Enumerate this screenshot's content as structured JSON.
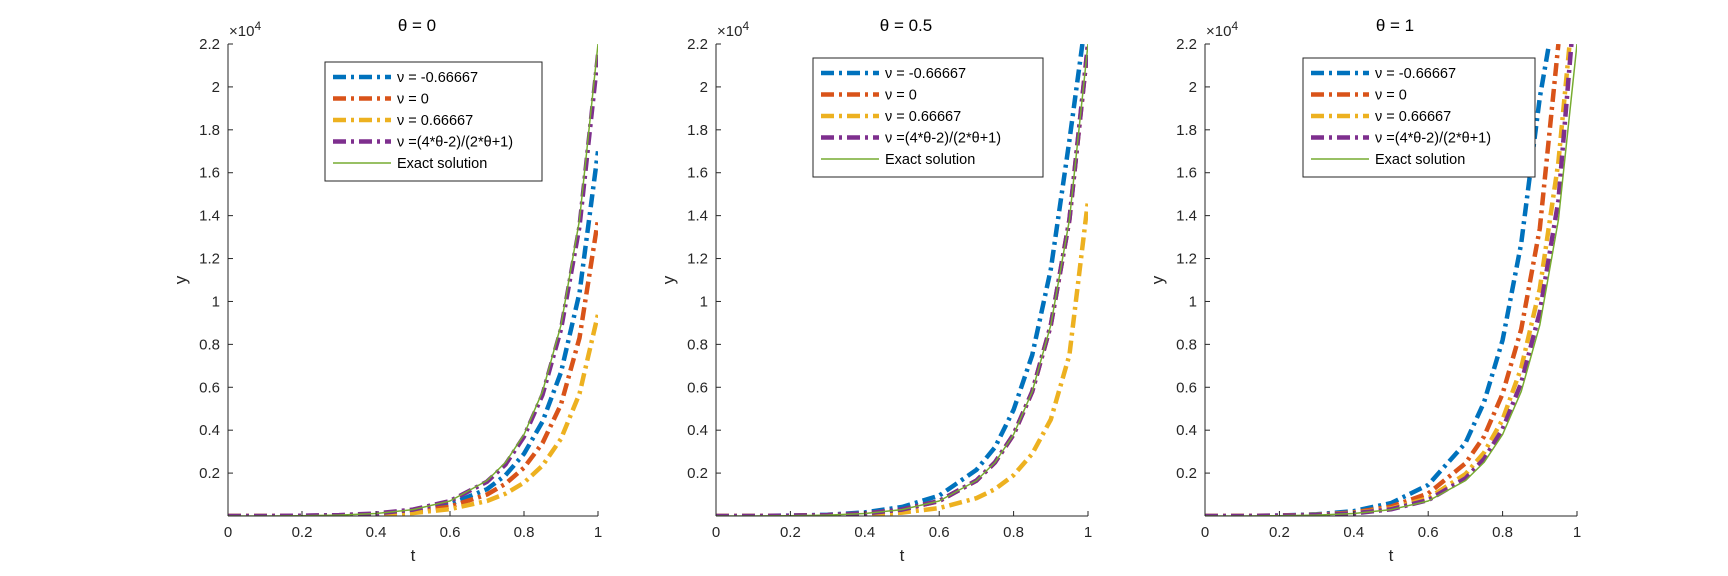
{
  "chart_data": [
    {
      "type": "line",
      "title": "θ = 0",
      "title_prefix": "θ",
      "title_value": "0",
      "xlabel": "t",
      "ylabel": "y",
      "exponent_label": "×10",
      "exponent_power": "4",
      "xlim": [
        0,
        1
      ],
      "ylim": [
        0,
        22000
      ],
      "xticks": [
        "0",
        "0.2",
        "0.4",
        "0.6",
        "0.8",
        "1"
      ],
      "yticks": [
        "0.2",
        "0.4",
        "0.6",
        "0.8",
        "1",
        "1.2",
        "1.4",
        "1.6",
        "1.8",
        "2",
        "2.2"
      ],
      "grid": false,
      "legend_position": "top",
      "series": [
        {
          "name": "ν = -0.66667",
          "style": "dash-dot",
          "x": [
            0,
            0.1,
            0.2,
            0.3,
            0.4,
            0.5,
            0.6,
            0.7,
            0.75,
            0.8,
            0.85,
            0.9,
            0.95,
            1
          ],
          "y": [
            0,
            2,
            10,
            30,
            90,
            230,
            550,
            1250,
            1900,
            2900,
            4400,
            6700,
            10400,
            17000
          ]
        },
        {
          "name": "ν = 0",
          "style": "dash-dot",
          "x": [
            0,
            0.1,
            0.2,
            0.3,
            0.4,
            0.5,
            0.6,
            0.7,
            0.75,
            0.8,
            0.85,
            0.9,
            0.95,
            1
          ],
          "y": [
            0,
            2,
            8,
            25,
            75,
            190,
            440,
            1000,
            1500,
            2250,
            3400,
            5200,
            8300,
            13800
          ]
        },
        {
          "name": "ν = 0.66667",
          "style": "dash-dot",
          "x": [
            0,
            0.1,
            0.2,
            0.3,
            0.4,
            0.5,
            0.6,
            0.7,
            0.75,
            0.8,
            0.85,
            0.9,
            0.95,
            1
          ],
          "y": [
            0,
            1,
            6,
            20,
            55,
            140,
            320,
            700,
            1040,
            1550,
            2350,
            3600,
            5700,
            9400
          ]
        },
        {
          "name": "ν =(4*θ-2)/(2*θ+1)",
          "style": "dash-dot",
          "x": [
            0,
            0.1,
            0.2,
            0.3,
            0.4,
            0.5,
            0.6,
            0.7,
            0.75,
            0.8,
            0.85,
            0.9,
            0.95,
            1
          ],
          "y": [
            0,
            2,
            12,
            40,
            115,
            300,
            700,
            1600,
            2400,
            3700,
            5650,
            8700,
            13500,
            21500
          ]
        },
        {
          "name": "Exact solution",
          "style": "solid",
          "x": [
            0,
            0.1,
            0.2,
            0.3,
            0.4,
            0.5,
            0.6,
            0.7,
            0.75,
            0.8,
            0.85,
            0.9,
            0.95,
            1
          ],
          "y": [
            0,
            2,
            12,
            40,
            115,
            300,
            700,
            1650,
            2500,
            3800,
            5800,
            8900,
            13800,
            22000
          ]
        }
      ]
    },
    {
      "type": "line",
      "title": "θ = 0.5",
      "title_prefix": "θ",
      "title_value": "0.5",
      "xlabel": "t",
      "ylabel": "y",
      "exponent_label": "×10",
      "exponent_power": "4",
      "xlim": [
        0,
        1
      ],
      "ylim": [
        0,
        22000
      ],
      "xticks": [
        "0",
        "0.2",
        "0.4",
        "0.6",
        "0.8",
        "1"
      ],
      "yticks": [
        "0.2",
        "0.4",
        "0.6",
        "0.8",
        "1",
        "1.2",
        "1.4",
        "1.6",
        "1.8",
        "2",
        "2.2"
      ],
      "grid": false,
      "legend_position": "top",
      "series": [
        {
          "name": "ν = -0.66667",
          "style": "dash-dot",
          "x": [
            0,
            0.1,
            0.2,
            0.3,
            0.4,
            0.5,
            0.6,
            0.7,
            0.75,
            0.8,
            0.85,
            0.9,
            0.95,
            0.985
          ],
          "y": [
            0,
            4,
            20,
            60,
            170,
            420,
            950,
            2150,
            3200,
            4950,
            7500,
            11500,
            17500,
            22000
          ]
        },
        {
          "name": "ν = 0",
          "style": "dash-dot",
          "x": [
            0,
            0.1,
            0.2,
            0.3,
            0.4,
            0.5,
            0.6,
            0.7,
            0.75,
            0.8,
            0.85,
            0.9,
            0.95,
            1
          ],
          "y": [
            0,
            2,
            12,
            40,
            115,
            300,
            700,
            1650,
            2500,
            3800,
            5800,
            8900,
            13800,
            22000
          ]
        },
        {
          "name": "ν = 0.66667",
          "style": "dash-dot",
          "x": [
            0,
            0.1,
            0.2,
            0.3,
            0.4,
            0.5,
            0.6,
            0.7,
            0.75,
            0.8,
            0.85,
            0.9,
            0.95,
            1
          ],
          "y": [
            0,
            1,
            7,
            22,
            62,
            160,
            370,
            830,
            1250,
            1900,
            2900,
            4500,
            7500,
            14700
          ]
        },
        {
          "name": "ν =(4*θ-2)/(2*θ+1)",
          "style": "dash-dot",
          "x": [
            0,
            0.1,
            0.2,
            0.3,
            0.4,
            0.5,
            0.6,
            0.7,
            0.75,
            0.8,
            0.85,
            0.9,
            0.95,
            1
          ],
          "y": [
            0,
            2,
            12,
            40,
            115,
            300,
            700,
            1650,
            2500,
            3800,
            5800,
            8900,
            13800,
            22000
          ]
        },
        {
          "name": "Exact solution",
          "style": "solid",
          "x": [
            0,
            0.1,
            0.2,
            0.3,
            0.4,
            0.5,
            0.6,
            0.7,
            0.75,
            0.8,
            0.85,
            0.9,
            0.95,
            1
          ],
          "y": [
            0,
            2,
            12,
            40,
            115,
            300,
            700,
            1650,
            2500,
            3800,
            5800,
            8900,
            13800,
            22000
          ]
        }
      ]
    },
    {
      "type": "line",
      "title": "θ = 1",
      "title_prefix": "θ",
      "title_value": "1",
      "xlabel": "t",
      "ylabel": "y",
      "exponent_label": "×10",
      "exponent_power": "4",
      "xlim": [
        0,
        1
      ],
      "ylim": [
        0,
        22000
      ],
      "xticks": [
        "0",
        "0.2",
        "0.4",
        "0.6",
        "0.8",
        "1"
      ],
      "yticks": [
        "0.2",
        "0.4",
        "0.6",
        "0.8",
        "1",
        "1.2",
        "1.4",
        "1.6",
        "1.8",
        "2",
        "2.2"
      ],
      "grid": false,
      "legend_position": "top",
      "series": [
        {
          "name": "ν = -0.66667",
          "style": "dash-dot",
          "x": [
            0,
            0.1,
            0.2,
            0.3,
            0.4,
            0.5,
            0.6,
            0.7,
            0.75,
            0.8,
            0.85,
            0.9,
            0.925
          ],
          "y": [
            0,
            4,
            25,
            80,
            230,
            600,
            1450,
            3400,
            5300,
            8200,
            12700,
            19500,
            22000
          ]
        },
        {
          "name": "ν = 0",
          "style": "dash-dot",
          "x": [
            0,
            0.1,
            0.2,
            0.3,
            0.4,
            0.5,
            0.6,
            0.7,
            0.75,
            0.8,
            0.85,
            0.9,
            0.95
          ],
          "y": [
            0,
            3,
            18,
            60,
            170,
            440,
            1050,
            2450,
            3700,
            5700,
            8700,
            13400,
            22000
          ]
        },
        {
          "name": "ν = 0.66667",
          "style": "dash-dot",
          "x": [
            0,
            0.1,
            0.2,
            0.3,
            0.4,
            0.5,
            0.6,
            0.7,
            0.75,
            0.8,
            0.85,
            0.9,
            0.95,
            0.98
          ],
          "y": [
            0,
            2,
            14,
            47,
            135,
            350,
            830,
            1950,
            2950,
            4500,
            6900,
            10600,
            16500,
            22000
          ]
        },
        {
          "name": "ν =(4*θ-2)/(2*θ+1)",
          "style": "dash-dot",
          "x": [
            0,
            0.1,
            0.2,
            0.3,
            0.4,
            0.5,
            0.6,
            0.7,
            0.75,
            0.8,
            0.85,
            0.9,
            0.95,
            0.985
          ],
          "y": [
            0,
            2,
            13,
            42,
            120,
            310,
            740,
            1750,
            2650,
            4050,
            6200,
            9500,
            14700,
            22000
          ]
        },
        {
          "name": "Exact solution",
          "style": "solid",
          "x": [
            0,
            0.1,
            0.2,
            0.3,
            0.4,
            0.5,
            0.6,
            0.7,
            0.75,
            0.8,
            0.85,
            0.9,
            0.95,
            1
          ],
          "y": [
            0,
            2,
            12,
            40,
            115,
            300,
            700,
            1650,
            2500,
            3800,
            5800,
            8900,
            13800,
            22000
          ]
        }
      ]
    }
  ],
  "colors": {
    "series": [
      "#0072BD",
      "#D95319",
      "#EDB120",
      "#7E2F8E",
      "#77AC30"
    ],
    "axis": "#262626"
  }
}
